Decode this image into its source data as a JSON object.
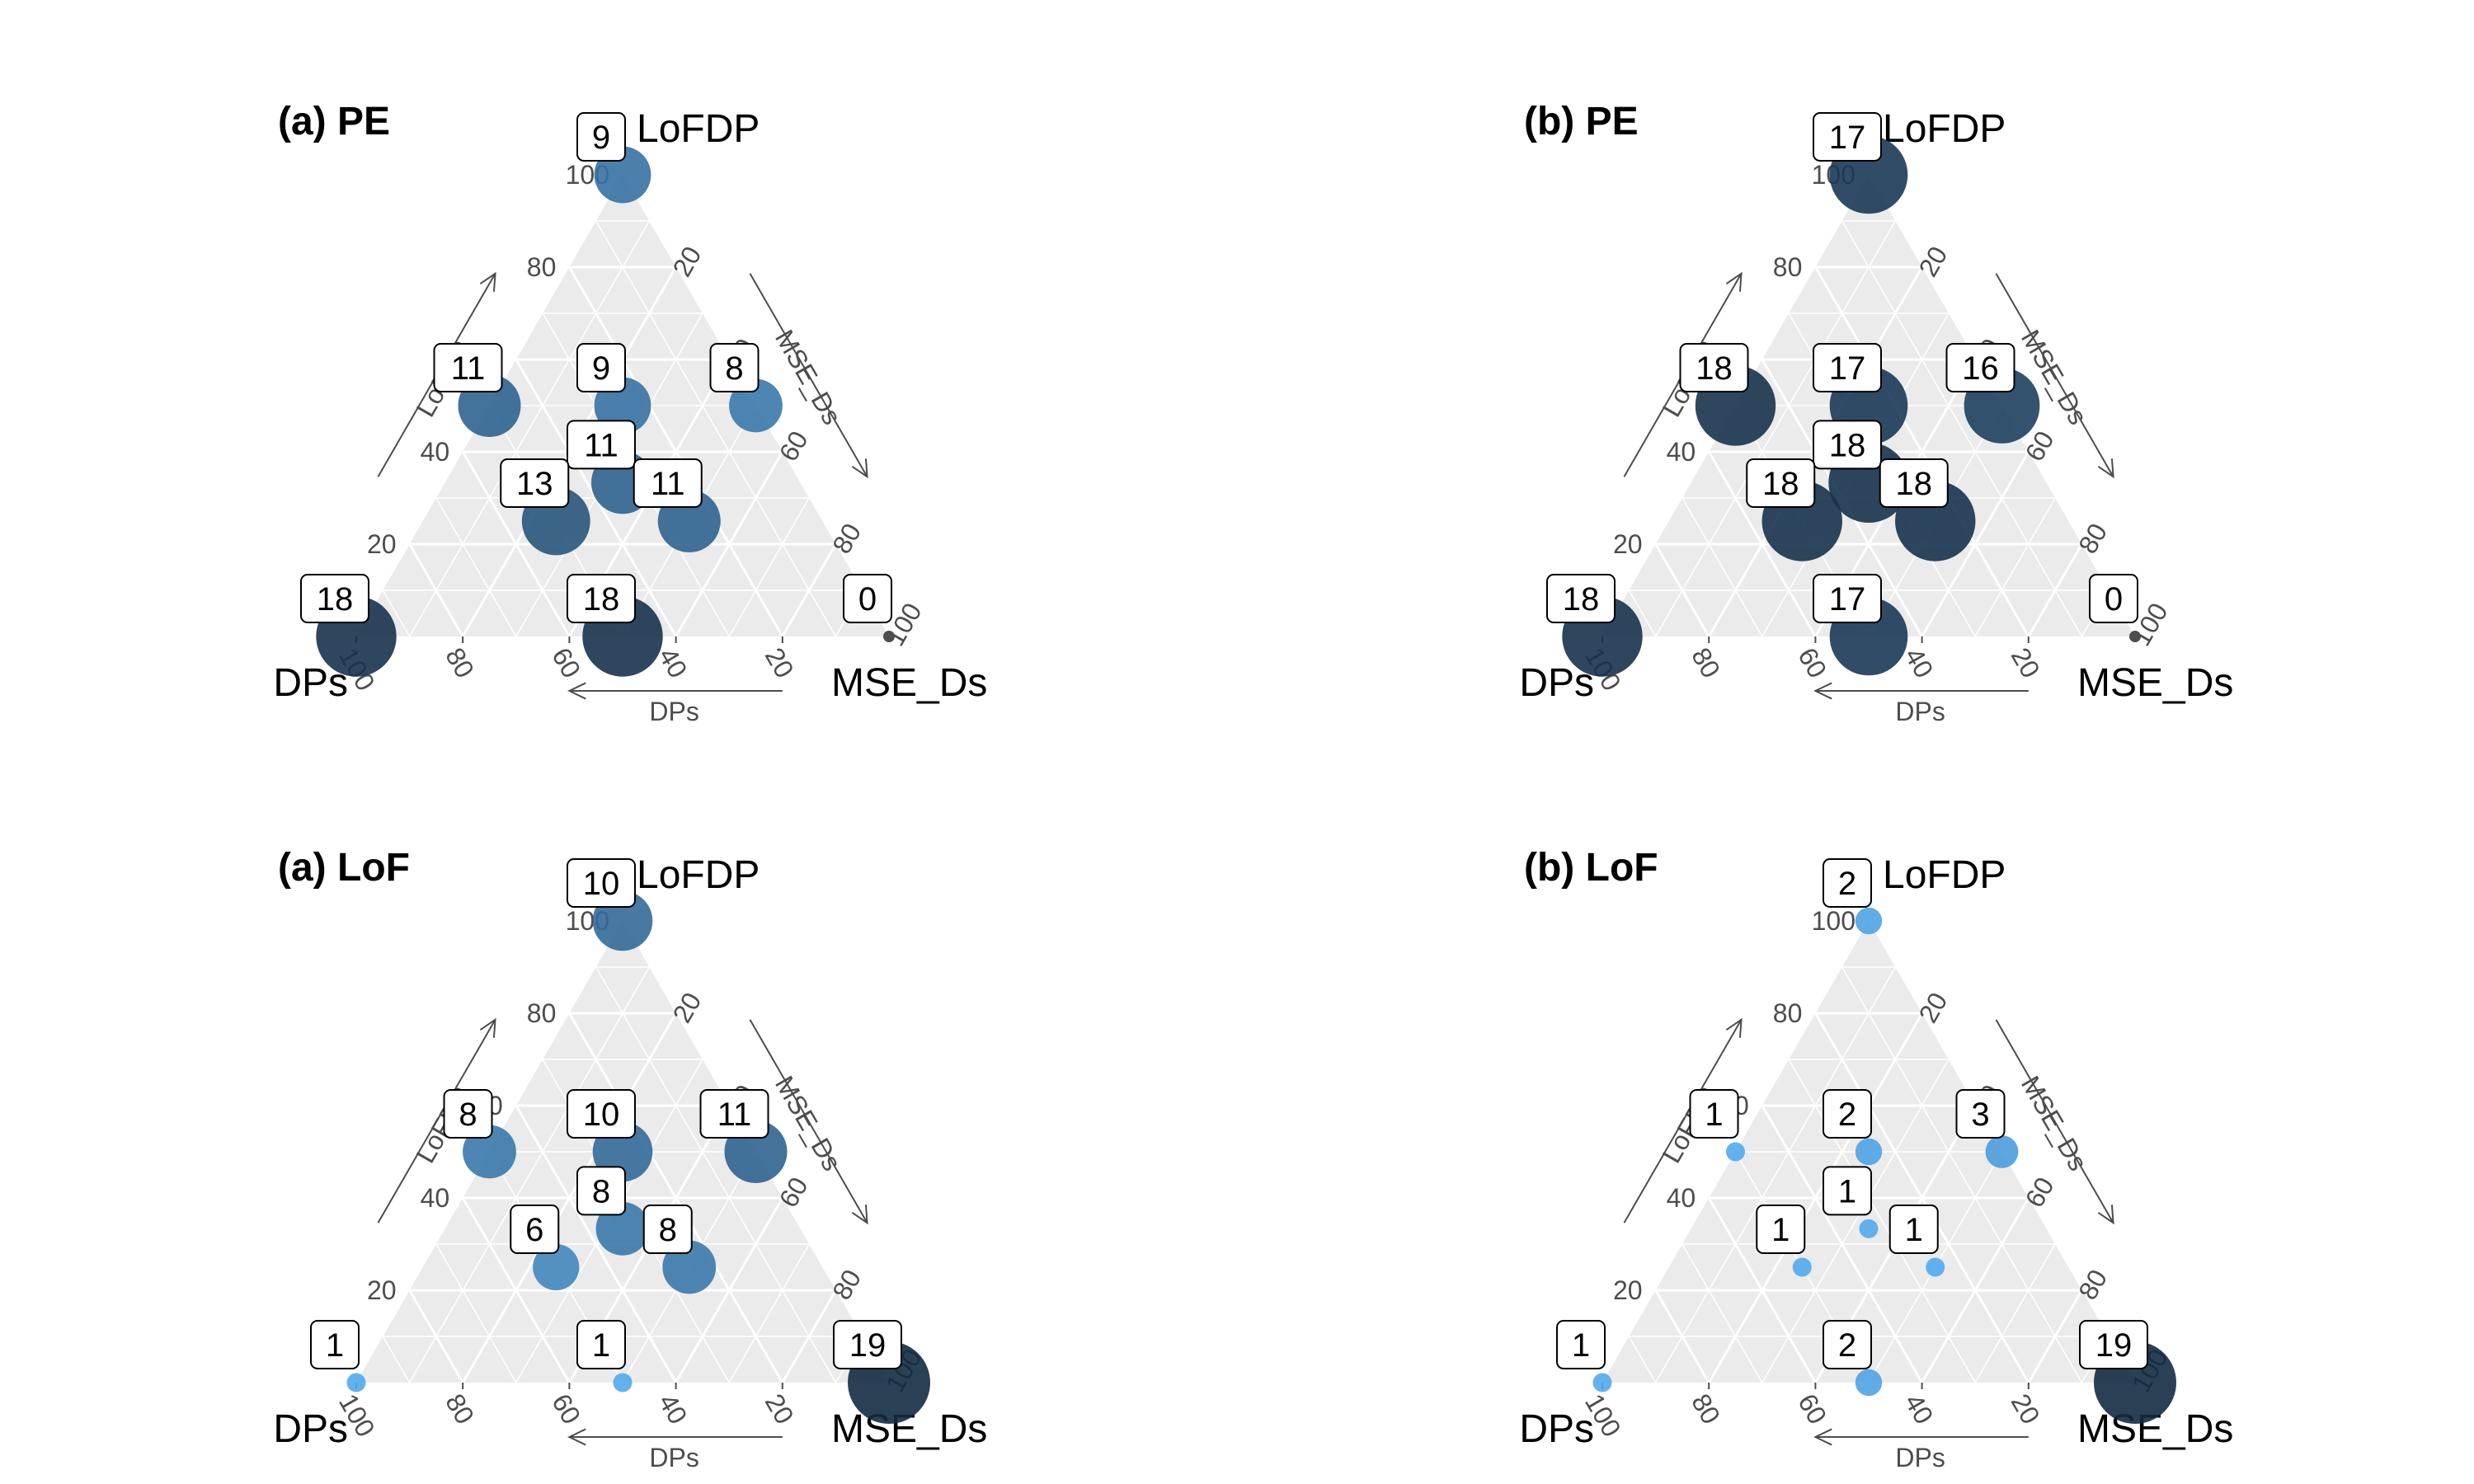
{
  "chart_data": [
    {
      "type": "ternary-bubble",
      "title": "(a) PE",
      "vertices": {
        "top": "LoFDP",
        "left": "DPs",
        "right": "MSE_Ds"
      },
      "axis_titles": {
        "left": "LoFDP",
        "right": "MSE_Ds",
        "bottom": "DPs"
      },
      "ticks": [
        20,
        40,
        60,
        80,
        100
      ],
      "size_range": [
        0,
        19
      ],
      "points": [
        {
          "DPs": 0,
          "LoFDP": 100,
          "MSE_Ds": 0,
          "count": 9
        },
        {
          "DPs": 50,
          "LoFDP": 50,
          "MSE_Ds": 0,
          "count": 11
        },
        {
          "DPs": 25,
          "LoFDP": 50,
          "MSE_Ds": 25,
          "count": 9
        },
        {
          "DPs": 0,
          "LoFDP": 50,
          "MSE_Ds": 50,
          "count": 8
        },
        {
          "DPs": 33.3,
          "LoFDP": 33.3,
          "MSE_Ds": 33.3,
          "count": 11
        },
        {
          "DPs": 50,
          "LoFDP": 25,
          "MSE_Ds": 25,
          "count": 13
        },
        {
          "DPs": 25,
          "LoFDP": 25,
          "MSE_Ds": 50,
          "count": 11
        },
        {
          "DPs": 100,
          "LoFDP": 0,
          "MSE_Ds": 0,
          "count": 18
        },
        {
          "DPs": 50,
          "LoFDP": 0,
          "MSE_Ds": 50,
          "count": 18
        },
        {
          "DPs": 0,
          "LoFDP": 0,
          "MSE_Ds": 100,
          "count": 0
        }
      ]
    },
    {
      "type": "ternary-bubble",
      "title": "(b) PE",
      "vertices": {
        "top": "LoFDP",
        "left": "DPs",
        "right": "MSE_Ds"
      },
      "axis_titles": {
        "left": "LoFDP",
        "right": "MSE_Ds",
        "bottom": "DPs"
      },
      "ticks": [
        20,
        40,
        60,
        80,
        100
      ],
      "size_range": [
        0,
        19
      ],
      "points": [
        {
          "DPs": 0,
          "LoFDP": 100,
          "MSE_Ds": 0,
          "count": 17
        },
        {
          "DPs": 50,
          "LoFDP": 50,
          "MSE_Ds": 0,
          "count": 18
        },
        {
          "DPs": 25,
          "LoFDP": 50,
          "MSE_Ds": 25,
          "count": 17
        },
        {
          "DPs": 0,
          "LoFDP": 50,
          "MSE_Ds": 50,
          "count": 16
        },
        {
          "DPs": 33.3,
          "LoFDP": 33.3,
          "MSE_Ds": 33.3,
          "count": 18
        },
        {
          "DPs": 50,
          "LoFDP": 25,
          "MSE_Ds": 25,
          "count": 18
        },
        {
          "DPs": 25,
          "LoFDP": 25,
          "MSE_Ds": 50,
          "count": 18
        },
        {
          "DPs": 100,
          "LoFDP": 0,
          "MSE_Ds": 0,
          "count": 18
        },
        {
          "DPs": 50,
          "LoFDP": 0,
          "MSE_Ds": 50,
          "count": 17
        },
        {
          "DPs": 0,
          "LoFDP": 0,
          "MSE_Ds": 100,
          "count": 0
        }
      ]
    },
    {
      "type": "ternary-bubble",
      "title": "(a) LoF",
      "vertices": {
        "top": "LoFDP",
        "left": "DPs",
        "right": "MSE_Ds"
      },
      "axis_titles": {
        "left": "LoFDP",
        "right": "MSE_Ds",
        "bottom": "DPs"
      },
      "ticks": [
        20,
        40,
        60,
        80,
        100
      ],
      "size_range": [
        0,
        19
      ],
      "points": [
        {
          "DPs": 0,
          "LoFDP": 100,
          "MSE_Ds": 0,
          "count": 10
        },
        {
          "DPs": 50,
          "LoFDP": 50,
          "MSE_Ds": 0,
          "count": 8
        },
        {
          "DPs": 25,
          "LoFDP": 50,
          "MSE_Ds": 25,
          "count": 10
        },
        {
          "DPs": 0,
          "LoFDP": 50,
          "MSE_Ds": 50,
          "count": 11
        },
        {
          "DPs": 33.3,
          "LoFDP": 33.3,
          "MSE_Ds": 33.3,
          "count": 8
        },
        {
          "DPs": 50,
          "LoFDP": 25,
          "MSE_Ds": 25,
          "count": 6
        },
        {
          "DPs": 25,
          "LoFDP": 25,
          "MSE_Ds": 50,
          "count": 8
        },
        {
          "DPs": 100,
          "LoFDP": 0,
          "MSE_Ds": 0,
          "count": 1
        },
        {
          "DPs": 50,
          "LoFDP": 0,
          "MSE_Ds": 50,
          "count": 1
        },
        {
          "DPs": 0,
          "LoFDP": 0,
          "MSE_Ds": 100,
          "count": 19
        }
      ]
    },
    {
      "type": "ternary-bubble",
      "title": "(b) LoF",
      "vertices": {
        "top": "LoFDP",
        "left": "DPs",
        "right": "MSE_Ds"
      },
      "axis_titles": {
        "left": "LoFDP",
        "right": "MSE_Ds",
        "bottom": "DPs"
      },
      "ticks": [
        20,
        40,
        60,
        80,
        100
      ],
      "size_range": [
        0,
        19
      ],
      "points": [
        {
          "DPs": 0,
          "LoFDP": 100,
          "MSE_Ds": 0,
          "count": 2
        },
        {
          "DPs": 50,
          "LoFDP": 50,
          "MSE_Ds": 0,
          "count": 1
        },
        {
          "DPs": 25,
          "LoFDP": 50,
          "MSE_Ds": 25,
          "count": 2
        },
        {
          "DPs": 0,
          "LoFDP": 50,
          "MSE_Ds": 50,
          "count": 3
        },
        {
          "DPs": 33.3,
          "LoFDP": 33.3,
          "MSE_Ds": 33.3,
          "count": 1
        },
        {
          "DPs": 50,
          "LoFDP": 25,
          "MSE_Ds": 25,
          "count": 1
        },
        {
          "DPs": 25,
          "LoFDP": 25,
          "MSE_Ds": 50,
          "count": 1
        },
        {
          "DPs": 100,
          "LoFDP": 0,
          "MSE_Ds": 0,
          "count": 1
        },
        {
          "DPs": 50,
          "LoFDP": 0,
          "MSE_Ds": 50,
          "count": 2
        },
        {
          "DPs": 0,
          "LoFDP": 0,
          "MSE_Ds": 100,
          "count": 19
        }
      ]
    }
  ],
  "style": {
    "panel_background": "#ebebeb",
    "grid_color": "#ffffff",
    "color_low": "#56b1f7",
    "color_high": "#132b43",
    "zero_point_color": "#4d4d4d",
    "axis_color": "#4d4d4d"
  }
}
